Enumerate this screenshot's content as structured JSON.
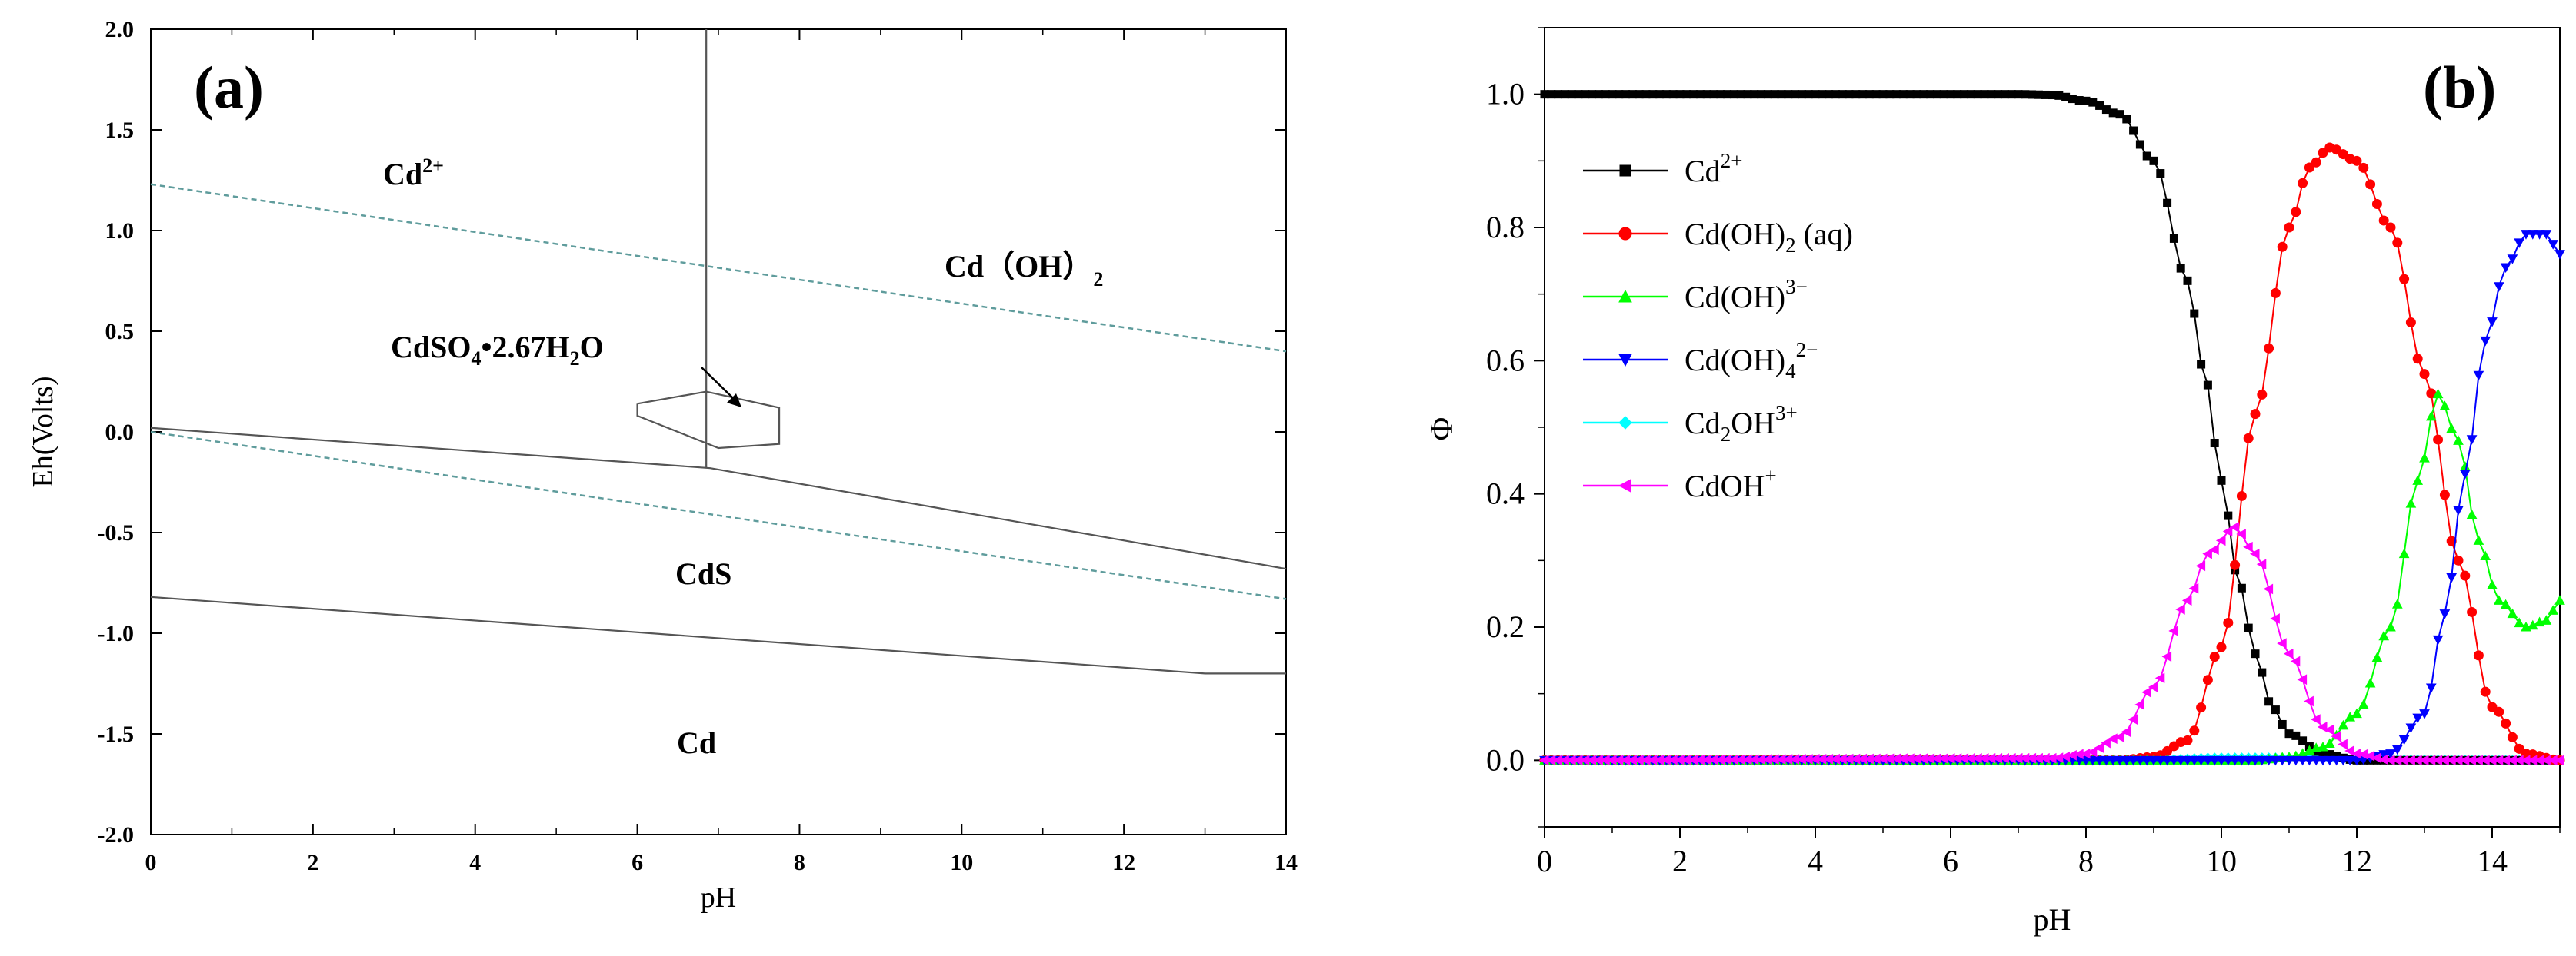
{
  "chart_data": [
    {
      "panel": "(a)",
      "type": "line",
      "description_type": "Eh-pH diagram",
      "title": "",
      "xlabel": "pH",
      "ylabel": "Eh(Volts)",
      "xlim": [
        0,
        14
      ],
      "ylim": [
        -2.0,
        2.0
      ],
      "xticks": [
        "0",
        "2",
        "4",
        "6",
        "8",
        "10",
        "12",
        "14"
      ],
      "yticks": [
        "2.0",
        "1.5",
        "1.0",
        "0.5",
        "0.0",
        "-0.5",
        "-1.0",
        "-1.5",
        "-2.0"
      ],
      "xtick_values": [
        0,
        2,
        4,
        6,
        8,
        10,
        12,
        14
      ],
      "ytick_values": [
        2.0,
        1.5,
        1.0,
        0.5,
        0.0,
        -0.5,
        -1.0,
        -1.5,
        -2.0
      ],
      "labels": {
        "cd2": "Cd",
        "cd2_sup": "2+",
        "cdoh2": "Cd（OH）",
        "cdoh2_sub": "2",
        "cdso4_a": "CdSO",
        "cdso4_sub4": "4",
        "cdso4_b": "•2.67H",
        "cdso4_sub2": "2",
        "cdso4_c": "O",
        "cds": "CdS",
        "cd": "Cd"
      },
      "boundaries": [
        {
          "name": "upper water line",
          "style": "dashed",
          "color": "#5f9c9c",
          "points": [
            [
              0,
              1.23
            ],
            [
              14,
              0.4
            ]
          ]
        },
        {
          "name": "lower water line",
          "style": "dashed",
          "color": "#5f9c9c",
          "points": [
            [
              0,
              0.0
            ],
            [
              14,
              -0.83
            ]
          ]
        },
        {
          "name": "Cd2+/CdS boundary",
          "style": "solid",
          "color": "#555555",
          "points": [
            [
              0,
              0.02
            ],
            [
              6.9,
              -0.18
            ],
            [
              14,
              -0.68
            ]
          ]
        },
        {
          "name": "CdS/Cd boundary",
          "style": "solid",
          "color": "#555555",
          "points": [
            [
              0,
              -0.82
            ],
            [
              13,
              -1.2
            ],
            [
              14,
              -1.2
            ]
          ]
        },
        {
          "name": "Cd2+/Cd(OH)2 boundary",
          "style": "solid",
          "color": "#555555",
          "points": [
            [
              6.85,
              2.0
            ],
            [
              6.85,
              -0.18
            ]
          ]
        },
        {
          "name": "CdSO4 region",
          "style": "solid",
          "color": "#555555",
          "points": [
            [
              6.0,
              0.14
            ],
            [
              6.85,
              0.2
            ],
            [
              7.75,
              0.12
            ],
            [
              7.75,
              -0.06
            ],
            [
              7.0,
              -0.08
            ],
            [
              6.0,
              0.08
            ],
            [
              6.0,
              0.14
            ]
          ]
        }
      ]
    },
    {
      "panel": "(b)",
      "type": "line",
      "description_type": "species distribution",
      "title": "",
      "xlabel": "pH",
      "ylabel": "Φ",
      "xlim": [
        0,
        15
      ],
      "ylim": [
        -0.1,
        1.1
      ],
      "xticks": [
        "0",
        "2",
        "4",
        "6",
        "8",
        "10",
        "12",
        "14"
      ],
      "yticks": [
        "0.0",
        "0.2",
        "0.4",
        "0.6",
        "0.8",
        "1.0"
      ],
      "xtick_values": [
        0,
        2,
        4,
        6,
        8,
        10,
        12,
        14
      ],
      "ytick_values": [
        0.0,
        0.2,
        0.4,
        0.6,
        0.8,
        1.0
      ],
      "legend_position": "upper-left",
      "series": [
        {
          "name": "Cd2+",
          "base": "Cd",
          "sup": "2+",
          "sub": "",
          "tail": "",
          "color": "#000000",
          "marker": "square",
          "x": [
            0,
            7,
            7.5,
            8,
            8.5,
            9,
            9.5,
            9.75,
            10,
            10.25,
            10.5,
            10.75,
            11,
            11.5,
            12,
            15
          ],
          "y": [
            1.0,
            1.0,
            0.999,
            0.99,
            0.97,
            0.9,
            0.72,
            0.58,
            0.42,
            0.27,
            0.16,
            0.08,
            0.04,
            0.01,
            0.0,
            0.0
          ]
        },
        {
          "name": "Cd(OH)2 (aq)",
          "base": "Cd(OH)",
          "sup": "",
          "sub": "2",
          "tail": " (aq)",
          "color": "#ff0000",
          "marker": "circle",
          "x": [
            0,
            8.5,
            9,
            9.5,
            10,
            10.5,
            11,
            11.3,
            11.6,
            12,
            12.5,
            13,
            13.5,
            14,
            14.5,
            15
          ],
          "y": [
            0.0,
            0.0,
            0.005,
            0.03,
            0.17,
            0.52,
            0.8,
            0.89,
            0.92,
            0.9,
            0.8,
            0.58,
            0.3,
            0.08,
            0.01,
            0.0
          ]
        },
        {
          "name": "Cd(OH)3-",
          "base": "Cd(OH)",
          "sup": "3−",
          "sub": "",
          "tail": "",
          "color": "#00ff00",
          "marker": "triangle-up",
          "x": [
            0,
            10.5,
            11,
            11.5,
            12,
            12.5,
            12.9,
            13.2,
            13.5,
            13.8,
            14.1,
            14.5,
            14.8,
            15
          ],
          "y": [
            0.0,
            0.0,
            0.005,
            0.02,
            0.07,
            0.2,
            0.42,
            0.55,
            0.48,
            0.33,
            0.24,
            0.2,
            0.21,
            0.24
          ]
        },
        {
          "name": "Cd(OH)4 2-",
          "base": "Cd(OH)",
          "sup": "2−",
          "sub": "4",
          "tail": "",
          "color": "#0000ff",
          "marker": "triangle-down",
          "x": [
            0,
            12,
            12.5,
            13,
            13.3,
            13.6,
            13.9,
            14.2,
            14.5,
            14.8,
            15
          ],
          "y": [
            0.0,
            0.0,
            0.01,
            0.07,
            0.22,
            0.43,
            0.63,
            0.74,
            0.79,
            0.79,
            0.76
          ]
        },
        {
          "name": "Cd2OH3+",
          "base": "Cd",
          "sup": "3+",
          "sub": "2",
          "tail": "OH",
          "color": "#00ffff",
          "marker": "diamond",
          "x": [
            0,
            9,
            10,
            11,
            12,
            15
          ],
          "y": [
            0.0,
            0.001,
            0.004,
            0.004,
            0.001,
            0.0
          ]
        },
        {
          "name": "CdOH+",
          "base": "CdOH",
          "sup": "+",
          "sub": "",
          "tail": "",
          "color": "#ff00ff",
          "marker": "triangle-left",
          "x": [
            0,
            7.5,
            8,
            8.5,
            9,
            9.5,
            9.8,
            10.2,
            10.5,
            11,
            11.5,
            12,
            12.5,
            15
          ],
          "y": [
            0.0,
            0.003,
            0.01,
            0.035,
            0.11,
            0.24,
            0.31,
            0.35,
            0.31,
            0.16,
            0.05,
            0.01,
            0.0,
            0.0
          ]
        }
      ]
    }
  ]
}
